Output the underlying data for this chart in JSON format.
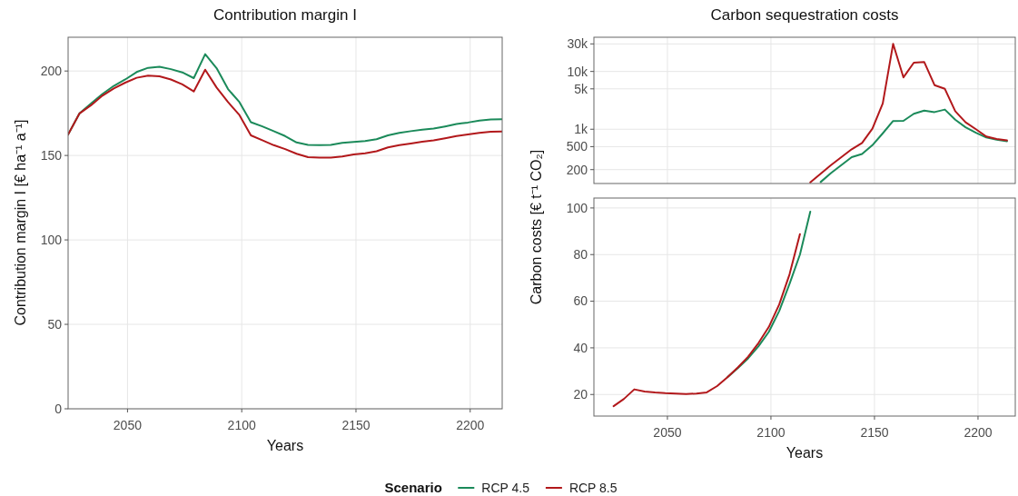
{
  "chart_data": [
    {
      "type": "line",
      "title": "Contribution margin I",
      "xlabel": "Years",
      "ylabel": "Contribution margin I [€ ha⁻¹ a⁻¹]",
      "legend_title": "Scenario",
      "legend": "bottom",
      "grid": true,
      "x": [
        2024,
        2029,
        2034,
        2039,
        2044,
        2049,
        2054,
        2059,
        2064,
        2069,
        2074,
        2079,
        2084,
        2089,
        2094,
        2099,
        2104,
        2109,
        2114,
        2119,
        2124,
        2129,
        2134,
        2139,
        2144,
        2149,
        2154,
        2159,
        2164,
        2169,
        2174,
        2179,
        2184,
        2189,
        2194,
        2199,
        2204,
        2209,
        2214
      ],
      "xlim": [
        2024,
        2214
      ],
      "xticks": [
        2050,
        2100,
        2150,
        2200
      ],
      "ylim": [
        0,
        220
      ],
      "yticks": [
        0,
        50,
        100,
        150,
        200
      ],
      "series": [
        {
          "name": "RCP 4.5",
          "color": "#1b8a5a",
          "values": [
            162.4,
            174.9,
            180.7,
            186.4,
            191.2,
            195,
            199.4,
            201.9,
            202.5,
            201.1,
            199.2,
            195.8,
            210,
            201.7,
            189.3,
            181.6,
            169.7,
            167.2,
            164.4,
            161.5,
            157.7,
            156.3,
            156.1,
            156.3,
            157.5,
            158,
            158.6,
            159.6,
            161.9,
            163.4,
            164.4,
            165.3,
            165.9,
            167.2,
            168.6,
            169.5,
            170.7,
            171.3,
            171.5
          ]
        },
        {
          "name": "RCP 8.5",
          "color": "#b2181b",
          "values": [
            162.4,
            174.9,
            179.7,
            185.4,
            189.7,
            193.1,
            196,
            197.3,
            196.9,
            195,
            192.1,
            187.9,
            200.8,
            190.2,
            181.6,
            173.9,
            161.9,
            159,
            156.1,
            153.8,
            151,
            149,
            148.7,
            148.7,
            149.4,
            150.6,
            151.3,
            152.5,
            154.8,
            156.1,
            157.1,
            158.2,
            159,
            160.2,
            161.5,
            162.4,
            163.4,
            164,
            164.2
          ]
        }
      ]
    },
    {
      "type": "line",
      "title": "Carbon sequestration costs",
      "log": "y",
      "grid": true,
      "tick_labels": "y",
      "xlim": [
        2014.5,
        2218
      ],
      "xticks": [
        2050,
        2100,
        2150,
        2200
      ],
      "ylim": [
        115,
        39100
      ],
      "yticks": [
        200,
        500,
        {
          "value": 1000,
          "label": "1k"
        },
        {
          "value": 5000,
          "label": "5k"
        },
        {
          "value": 10000,
          "label": "10k"
        },
        {
          "value": 30000,
          "label": "30k"
        }
      ],
      "series": [
        {
          "color": "#1b8a5a",
          "x": [
            2124,
            2129,
            2134,
            2139,
            2144,
            2149,
            2154,
            2159,
            2164,
            2169,
            2174,
            2179,
            2184,
            2189,
            2194,
            2199,
            2204,
            2209,
            2214
          ],
          "values": [
            122,
            174,
            239,
            328,
            372,
            530,
            850,
            1390,
            1400,
            1850,
            2100,
            1980,
            2190,
            1460,
            1080,
            870,
            720,
            660,
            620
          ]
        },
        {
          "color": "#b2181b",
          "x": [
            2119,
            2124,
            2129,
            2134,
            2139,
            2144,
            2149,
            2154,
            2159,
            2164,
            2169,
            2174,
            2179,
            2184,
            2189,
            2194,
            2199,
            2204,
            2209,
            2214
          ],
          "values": [
            120,
            170,
            239,
            328,
            450,
            580,
            1020,
            2800,
            30000,
            7900,
            14200,
            14600,
            5800,
            5000,
            2050,
            1320,
            1000,
            750,
            680,
            640
          ]
        }
      ]
    },
    {
      "type": "line",
      "xlabel": "Years",
      "ylabel": "Carbon costs [€ t⁻¹ CO₂]",
      "grid": true,
      "xlim": [
        2014.5,
        2218
      ],
      "xticks": [
        2050,
        2100,
        2150,
        2200
      ],
      "ylim": [
        10.75,
        104.25
      ],
      "yticks": [
        20,
        40,
        60,
        80,
        100
      ],
      "series": [
        {
          "color": "#1b8a5a",
          "x": [
            2079,
            2084,
            2089,
            2094,
            2099,
            2104,
            2109,
            2114,
            2119
          ],
          "values": [
            27.4,
            31.3,
            35.5,
            40.7,
            46.9,
            55.8,
            67.5,
            80,
            98.4
          ]
        },
        {
          "color": "#b2181b",
          "x": [
            2024,
            2029,
            2034,
            2039,
            2044,
            2049,
            2054,
            2059,
            2064,
            2069,
            2074,
            2079,
            2084,
            2089,
            2094,
            2099,
            2104,
            2109,
            2114
          ],
          "values": [
            15,
            18.1,
            22.2,
            21.3,
            20.9,
            20.6,
            20.4,
            20.2,
            20.4,
            20.9,
            23.6,
            27.4,
            31.6,
            36.2,
            42.1,
            49,
            58.6,
            71.6,
            88.8
          ]
        }
      ]
    }
  ]
}
